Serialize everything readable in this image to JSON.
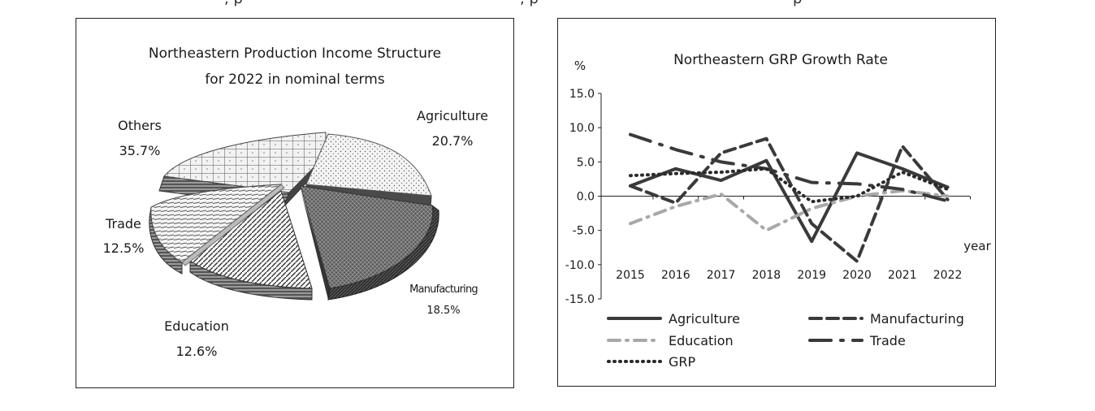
{
  "top_text": {
    "fragment_left": ", p",
    "fragment_mid": ", p",
    "fragment_right": "p"
  },
  "chart_data": [
    {
      "type": "pie",
      "title": "Northeastern Production Income Structure",
      "subtitle": "for 2022 in nominal terms",
      "slices": [
        {
          "name": "Agriculture",
          "value": 20.7,
          "label": "20.7%"
        },
        {
          "name": "Manufacturing",
          "value": 18.5,
          "label": "18.5%"
        },
        {
          "name": "Education",
          "value": 12.6,
          "label": "12.6%"
        },
        {
          "name": "Trade",
          "value": 12.5,
          "label": "12.5%"
        },
        {
          "name": "Others",
          "value": 35.7,
          "label": "35.7%"
        }
      ],
      "style": "3d-exploded, patterned grayscale"
    },
    {
      "type": "line",
      "title": "Northeastern GRP Growth Rate",
      "ylabel": "%",
      "xlabel": "year",
      "ylim": [
        -15,
        15
      ],
      "yticks": [
        "15.0",
        "10.0",
        "5.0",
        "0.0",
        "-5.0",
        "-10.0",
        "-15.0"
      ],
      "ytick_values": [
        15,
        10,
        5,
        0,
        -5,
        -10,
        -15
      ],
      "x": [
        "2015",
        "2016",
        "2017",
        "2018",
        "2019",
        "2020",
        "2021",
        "2022"
      ],
      "series": [
        {
          "name": "Agriculture",
          "color": "#3a3a3a",
          "dash": "solid",
          "values": [
            1.5,
            4.0,
            2.3,
            5.2,
            -6.6,
            6.3,
            4.0,
            1.3
          ]
        },
        {
          "name": "Manufacturing",
          "color": "#3a3a3a",
          "dash": "dashed",
          "values": [
            1.5,
            -1.0,
            6.3,
            8.4,
            -4.0,
            -9.5,
            7.3,
            -0.5
          ]
        },
        {
          "name": "Education",
          "color": "#a8a8a8",
          "dash": "dash-dot",
          "values": [
            -4.0,
            -1.5,
            0.3,
            -5.0,
            -1.8,
            0.0,
            0.8,
            0.0
          ]
        },
        {
          "name": "Trade",
          "color": "#3a3a3a",
          "dash": "long-dash-dot",
          "values": [
            9.0,
            6.8,
            5.0,
            4.0,
            2.0,
            1.8,
            1.0,
            -0.7
          ]
        },
        {
          "name": "GRP",
          "color": "#2a2a2a",
          "dash": "dotted",
          "values": [
            3.0,
            3.3,
            3.5,
            4.0,
            -0.8,
            0.0,
            3.5,
            1.0
          ]
        }
      ],
      "legend": "bottom",
      "grid": false
    }
  ]
}
